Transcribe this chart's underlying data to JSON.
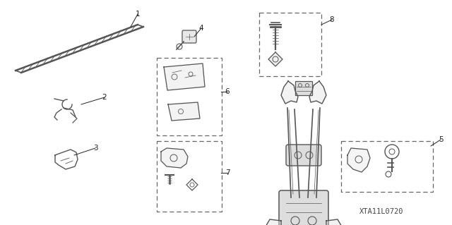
{
  "part_code": "XTA11L0720",
  "background_color": "#ffffff",
  "lc": "#555555",
  "dc": "#666666",
  "tc": "#222222",
  "figsize": [
    6.4,
    3.19
  ],
  "dpi": 100
}
